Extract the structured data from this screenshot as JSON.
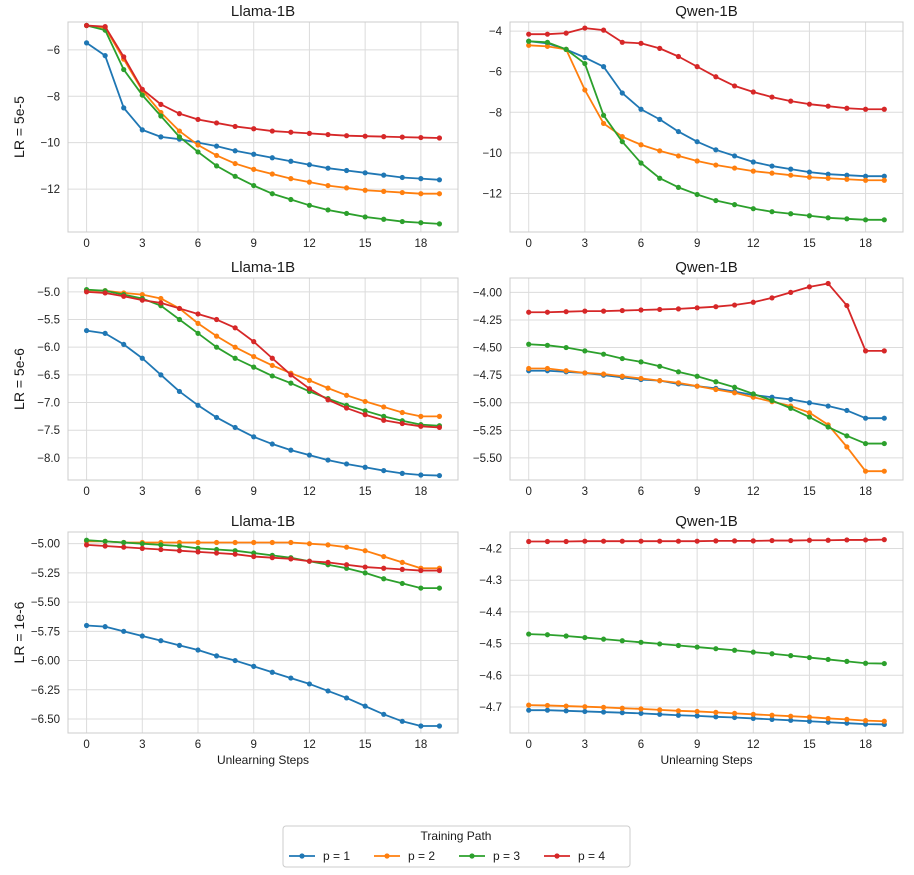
{
  "chart_data": {
    "type": "line",
    "legend": {
      "title": "Training Path",
      "placement": "bottom-center",
      "entries": [
        {
          "label": "p = 1",
          "color": "#1f77b4"
        },
        {
          "label": "p = 2",
          "color": "#ff7f0e"
        },
        {
          "label": "p = 3",
          "color": "#2ca02c"
        },
        {
          "label": "p = 4",
          "color": "#d62728"
        }
      ]
    },
    "grid": true,
    "x": [
      0,
      1,
      2,
      3,
      4,
      5,
      6,
      7,
      8,
      9,
      10,
      11,
      12,
      13,
      14,
      15,
      16,
      17,
      18,
      19
    ],
    "xticks": [
      0,
      3,
      6,
      9,
      12,
      15,
      18
    ],
    "xlim": [
      -1,
      20
    ],
    "row_labels": [
      "LR = 5e-5",
      "LR = 5e-6",
      "LR = 1e-6"
    ],
    "xlabel": "Unlearning Steps",
    "panels": [
      {
        "title": "Llama-1B",
        "row": 0,
        "col": 0,
        "ylim": [
          -13.85,
          -4.8
        ],
        "yticks": [
          -6,
          -8,
          -10,
          -12
        ],
        "ytick_labels": [
          "−6",
          "−8",
          "−10",
          "−12"
        ],
        "series": [
          {
            "name": "p = 1",
            "color": "#1f77b4",
            "values": [
              -5.7,
              -6.25,
              -8.5,
              -9.45,
              -9.75,
              -9.85,
              -10.0,
              -10.15,
              -10.35,
              -10.5,
              -10.65,
              -10.8,
              -10.95,
              -11.1,
              -11.2,
              -11.3,
              -11.4,
              -11.5,
              -11.55,
              -11.6
            ]
          },
          {
            "name": "p = 2",
            "color": "#ff7f0e",
            "values": [
              -4.95,
              -5.05,
              -6.4,
              -7.75,
              -8.7,
              -9.5,
              -10.1,
              -10.55,
              -10.9,
              -11.15,
              -11.35,
              -11.55,
              -11.7,
              -11.85,
              -11.95,
              -12.05,
              -12.1,
              -12.15,
              -12.2,
              -12.2
            ]
          },
          {
            "name": "p = 3",
            "color": "#2ca02c",
            "values": [
              -4.95,
              -5.15,
              -6.85,
              -7.95,
              -8.85,
              -9.75,
              -10.4,
              -11.0,
              -11.45,
              -11.85,
              -12.2,
              -12.45,
              -12.7,
              -12.9,
              -13.05,
              -13.2,
              -13.3,
              -13.4,
              -13.45,
              -13.5
            ]
          },
          {
            "name": "p = 4",
            "color": "#d62728",
            "values": [
              -4.95,
              -5.0,
              -6.3,
              -7.7,
              -8.35,
              -8.75,
              -9.0,
              -9.15,
              -9.3,
              -9.4,
              -9.5,
              -9.55,
              -9.6,
              -9.65,
              -9.7,
              -9.72,
              -9.74,
              -9.76,
              -9.78,
              -9.8
            ]
          }
        ]
      },
      {
        "title": "Qwen-1B",
        "row": 0,
        "col": 1,
        "ylim": [
          -13.9,
          -3.55
        ],
        "yticks": [
          -4,
          -6,
          -8,
          -10,
          -12
        ],
        "ytick_labels": [
          "−4",
          "−6",
          "−8",
          "−10",
          "−12"
        ],
        "series": [
          {
            "name": "p = 1",
            "color": "#1f77b4",
            "values": [
              -4.5,
              -4.6,
              -4.9,
              -5.3,
              -5.75,
              -7.05,
              -7.85,
              -8.35,
              -8.95,
              -9.45,
              -9.85,
              -10.15,
              -10.45,
              -10.65,
              -10.8,
              -10.95,
              -11.05,
              -11.1,
              -11.15,
              -11.15
            ]
          },
          {
            "name": "p = 2",
            "color": "#ff7f0e",
            "values": [
              -4.7,
              -4.75,
              -4.9,
              -6.9,
              -8.55,
              -9.2,
              -9.6,
              -9.9,
              -10.15,
              -10.4,
              -10.6,
              -10.75,
              -10.9,
              -11.0,
              -11.1,
              -11.2,
              -11.25,
              -11.3,
              -11.35,
              -11.35
            ]
          },
          {
            "name": "p = 3",
            "color": "#2ca02c",
            "values": [
              -4.5,
              -4.55,
              -4.9,
              -5.6,
              -8.15,
              -9.45,
              -10.5,
              -11.25,
              -11.7,
              -12.05,
              -12.35,
              -12.55,
              -12.75,
              -12.9,
              -13.0,
              -13.1,
              -13.2,
              -13.25,
              -13.3,
              -13.3
            ]
          },
          {
            "name": "p = 4",
            "color": "#d62728",
            "values": [
              -4.15,
              -4.15,
              -4.1,
              -3.85,
              -3.95,
              -4.55,
              -4.6,
              -4.85,
              -5.25,
              -5.75,
              -6.25,
              -6.7,
              -7.0,
              -7.25,
              -7.45,
              -7.6,
              -7.7,
              -7.8,
              -7.85,
              -7.85
            ]
          }
        ]
      },
      {
        "title": "Llama-1B",
        "row": 1,
        "col": 0,
        "ylim": [
          -8.4,
          -4.75
        ],
        "yticks": [
          -5.0,
          -5.5,
          -6.0,
          -6.5,
          -7.0,
          -7.5,
          -8.0
        ],
        "ytick_labels": [
          "−5.0",
          "−5.5",
          "−6.0",
          "−6.5",
          "−7.0",
          "−7.5",
          "−8.0"
        ],
        "series": [
          {
            "name": "p = 1",
            "color": "#1f77b4",
            "values": [
              -5.7,
              -5.75,
              -5.95,
              -6.2,
              -6.5,
              -6.8,
              -7.05,
              -7.27,
              -7.45,
              -7.62,
              -7.75,
              -7.86,
              -7.95,
              -8.04,
              -8.11,
              -8.17,
              -8.23,
              -8.28,
              -8.31,
              -8.32
            ]
          },
          {
            "name": "p = 2",
            "color": "#ff7f0e",
            "values": [
              -4.97,
              -4.98,
              -5.02,
              -5.05,
              -5.12,
              -5.3,
              -5.57,
              -5.8,
              -6.0,
              -6.17,
              -6.33,
              -6.47,
              -6.6,
              -6.74,
              -6.87,
              -6.98,
              -7.08,
              -7.18,
              -7.25,
              -7.25
            ]
          },
          {
            "name": "p = 3",
            "color": "#2ca02c",
            "values": [
              -4.96,
              -4.98,
              -5.05,
              -5.12,
              -5.25,
              -5.5,
              -5.75,
              -6.0,
              -6.2,
              -6.36,
              -6.52,
              -6.65,
              -6.8,
              -6.93,
              -7.05,
              -7.15,
              -7.25,
              -7.33,
              -7.4,
              -7.42
            ]
          },
          {
            "name": "p = 4",
            "color": "#d62728",
            "values": [
              -5.0,
              -5.02,
              -5.08,
              -5.15,
              -5.2,
              -5.3,
              -5.4,
              -5.5,
              -5.65,
              -5.9,
              -6.2,
              -6.5,
              -6.75,
              -6.95,
              -7.1,
              -7.22,
              -7.32,
              -7.38,
              -7.43,
              -7.45
            ]
          }
        ]
      },
      {
        "title": "Qwen-1B",
        "row": 1,
        "col": 1,
        "ylim": [
          -5.7,
          -3.87
        ],
        "yticks": [
          -4.0,
          -4.25,
          -4.5,
          -4.75,
          -5.0,
          -5.25,
          -5.5
        ],
        "ytick_labels": [
          "−4.00",
          "−4.25",
          "−4.50",
          "−4.75",
          "−5.00",
          "−5.25",
          "−5.50"
        ],
        "series": [
          {
            "name": "p = 1",
            "color": "#1f77b4",
            "values": [
              -4.71,
              -4.71,
              -4.72,
              -4.73,
              -4.75,
              -4.77,
              -4.79,
              -4.8,
              -4.83,
              -4.85,
              -4.87,
              -4.9,
              -4.93,
              -4.95,
              -4.97,
              -5.0,
              -5.03,
              -5.07,
              -5.14,
              -5.14
            ]
          },
          {
            "name": "p = 2",
            "color": "#ff7f0e",
            "values": [
              -4.69,
              -4.69,
              -4.71,
              -4.73,
              -4.74,
              -4.76,
              -4.78,
              -4.8,
              -4.82,
              -4.85,
              -4.88,
              -4.91,
              -4.95,
              -4.99,
              -5.03,
              -5.09,
              -5.2,
              -5.4,
              -5.62,
              -5.62
            ]
          },
          {
            "name": "p = 3",
            "color": "#2ca02c",
            "values": [
              -4.47,
              -4.48,
              -4.5,
              -4.53,
              -4.56,
              -4.6,
              -4.63,
              -4.67,
              -4.72,
              -4.76,
              -4.81,
              -4.86,
              -4.92,
              -4.98,
              -5.05,
              -5.13,
              -5.22,
              -5.3,
              -5.37,
              -5.37
            ]
          },
          {
            "name": "p = 4",
            "color": "#d62728",
            "values": [
              -4.18,
              -4.18,
              -4.175,
              -4.17,
              -4.17,
              -4.165,
              -4.16,
              -4.155,
              -4.15,
              -4.14,
              -4.13,
              -4.115,
              -4.09,
              -4.05,
              -4.0,
              -3.95,
              -3.92,
              -4.12,
              -4.53,
              -4.53
            ]
          }
        ]
      },
      {
        "title": "Llama-1B",
        "row": 2,
        "col": 0,
        "ylim": [
          -6.62,
          -4.9
        ],
        "yticks": [
          -5.0,
          -5.25,
          -5.5,
          -5.75,
          -6.0,
          -6.25,
          -6.5
        ],
        "ytick_labels": [
          "−5.00",
          "−5.25",
          "−5.50",
          "−5.75",
          "−6.00",
          "−6.25",
          "−6.50"
        ],
        "series": [
          {
            "name": "p = 1",
            "color": "#1f77b4",
            "values": [
              -5.7,
              -5.71,
              -5.75,
              -5.79,
              -5.83,
              -5.87,
              -5.91,
              -5.96,
              -6.0,
              -6.05,
              -6.1,
              -6.15,
              -6.2,
              -6.26,
              -6.32,
              -6.39,
              -6.46,
              -6.52,
              -6.56,
              -6.56
            ]
          },
          {
            "name": "p = 2",
            "color": "#ff7f0e",
            "values": [
              -4.98,
              -4.98,
              -4.99,
              -4.99,
              -4.99,
              -4.99,
              -4.99,
              -4.99,
              -4.99,
              -4.99,
              -4.99,
              -4.99,
              -5.0,
              -5.01,
              -5.03,
              -5.06,
              -5.11,
              -5.16,
              -5.21,
              -5.21
            ]
          },
          {
            "name": "p = 3",
            "color": "#2ca02c",
            "values": [
              -4.97,
              -4.98,
              -4.99,
              -5.0,
              -5.01,
              -5.02,
              -5.04,
              -5.05,
              -5.06,
              -5.08,
              -5.1,
              -5.12,
              -5.15,
              -5.18,
              -5.21,
              -5.25,
              -5.3,
              -5.34,
              -5.38,
              -5.38
            ]
          },
          {
            "name": "p = 4",
            "color": "#d62728",
            "values": [
              -5.01,
              -5.02,
              -5.03,
              -5.04,
              -5.05,
              -5.06,
              -5.07,
              -5.08,
              -5.09,
              -5.11,
              -5.12,
              -5.13,
              -5.15,
              -5.16,
              -5.18,
              -5.2,
              -5.21,
              -5.22,
              -5.23,
              -5.23
            ]
          }
        ]
      },
      {
        "title": "Qwen-1B",
        "row": 2,
        "col": 1,
        "ylim": [
          -4.782,
          -4.148
        ],
        "yticks": [
          -4.2,
          -4.3,
          -4.4,
          -4.5,
          -4.6,
          -4.7
        ],
        "ytick_labels": [
          "−4.2",
          "−4.3",
          "−4.4",
          "−4.5",
          "−4.6",
          "−4.7"
        ],
        "series": [
          {
            "name": "p = 1",
            "color": "#1f77b4",
            "values": [
              -4.71,
              -4.71,
              -4.712,
              -4.714,
              -4.716,
              -4.718,
              -4.72,
              -4.723,
              -4.726,
              -4.728,
              -4.731,
              -4.733,
              -4.736,
              -4.739,
              -4.742,
              -4.745,
              -4.748,
              -4.751,
              -4.754,
              -4.755
            ]
          },
          {
            "name": "p = 2",
            "color": "#ff7f0e",
            "values": [
              -4.694,
              -4.695,
              -4.697,
              -4.699,
              -4.701,
              -4.704,
              -4.706,
              -4.709,
              -4.712,
              -4.714,
              -4.717,
              -4.72,
              -4.723,
              -4.726,
              -4.729,
              -4.732,
              -4.736,
              -4.739,
              -4.743,
              -4.745
            ]
          },
          {
            "name": "p = 3",
            "color": "#2ca02c",
            "values": [
              -4.47,
              -4.472,
              -4.476,
              -4.481,
              -4.486,
              -4.491,
              -4.496,
              -4.501,
              -4.506,
              -4.511,
              -4.516,
              -4.521,
              -4.527,
              -4.532,
              -4.538,
              -4.544,
              -4.55,
              -4.556,
              -4.562,
              -4.563
            ]
          },
          {
            "name": "p = 4",
            "color": "#d62728",
            "values": [
              -4.178,
              -4.178,
              -4.178,
              -4.177,
              -4.177,
              -4.177,
              -4.177,
              -4.177,
              -4.177,
              -4.177,
              -4.176,
              -4.176,
              -4.176,
              -4.175,
              -4.175,
              -4.174,
              -4.174,
              -4.173,
              -4.173,
              -4.172
            ]
          }
        ]
      }
    ]
  }
}
